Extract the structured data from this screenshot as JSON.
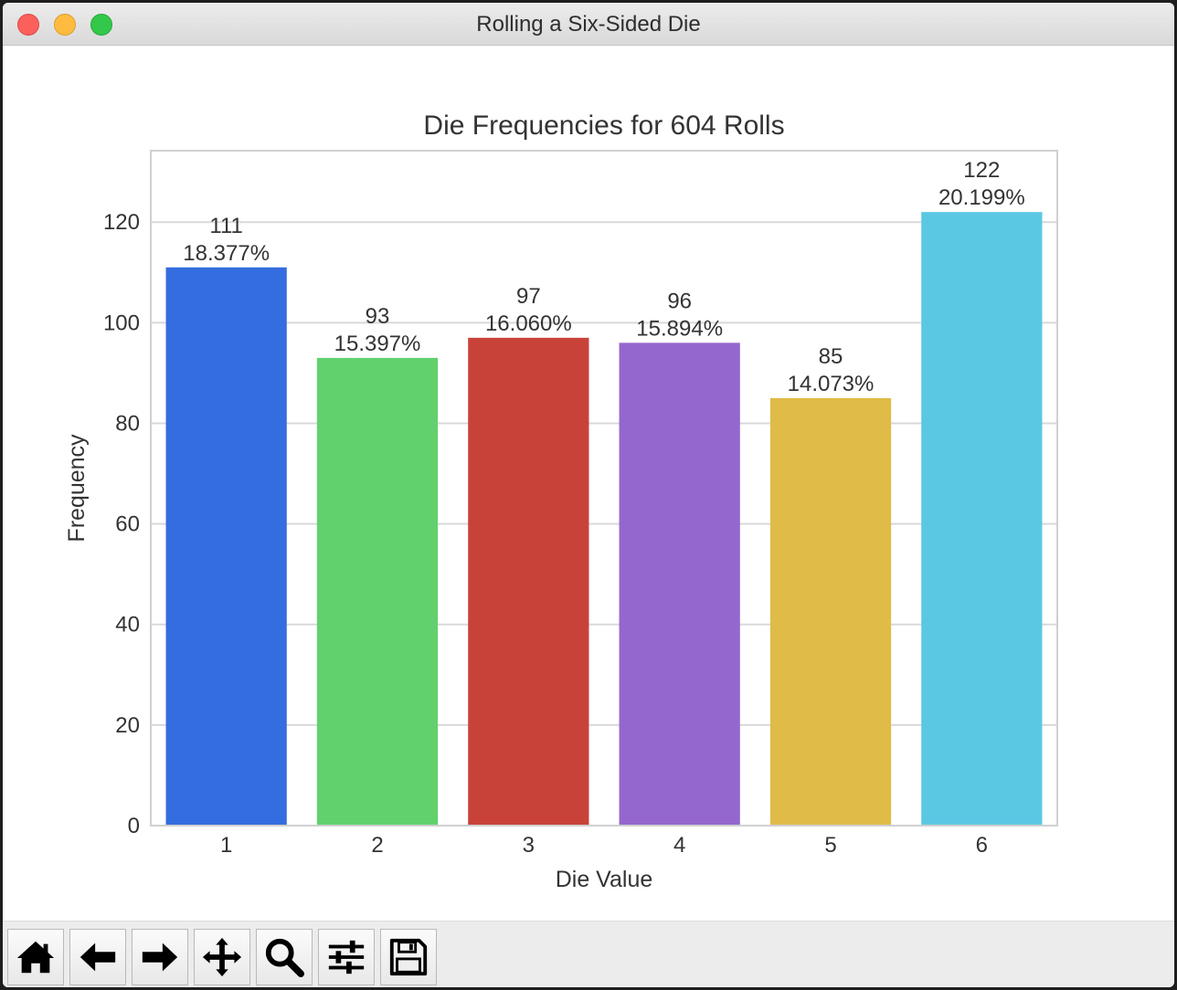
{
  "window": {
    "title": "Rolling a Six-Sided Die"
  },
  "toolbar": {
    "buttons": [
      {
        "name": "home-button",
        "icon": "home-icon"
      },
      {
        "name": "back-button",
        "icon": "arrow-left-icon"
      },
      {
        "name": "forward-button",
        "icon": "arrow-right-icon"
      },
      {
        "name": "pan-button",
        "icon": "move-icon"
      },
      {
        "name": "zoom-button",
        "icon": "magnifier-icon"
      },
      {
        "name": "configure-subplots-button",
        "icon": "sliders-icon"
      },
      {
        "name": "save-button",
        "icon": "floppy-disk-icon"
      }
    ]
  },
  "chart_data": {
    "type": "bar",
    "title": "Die Frequencies for 604 Rolls",
    "xlabel": "Die Value",
    "ylabel": "Frequency",
    "categories": [
      "1",
      "2",
      "3",
      "4",
      "5",
      "6"
    ],
    "values": [
      111,
      93,
      97,
      96,
      85,
      122
    ],
    "bar_labels": [
      "111\n18.377%",
      "93\n15.397%",
      "97\n16.060%",
      "96\n15.894%",
      "85\n14.073%",
      "122\n20.199%"
    ],
    "colors": [
      "#346ddf",
      "#61d16d",
      "#c8423a",
      "#9367cd",
      "#e0bb48",
      "#5bc8e3"
    ],
    "ylim": [
      0,
      134.2
    ],
    "yticks": [
      0,
      20,
      40,
      60,
      80,
      100,
      120
    ],
    "grid": "horizontal",
    "legend": "none"
  }
}
